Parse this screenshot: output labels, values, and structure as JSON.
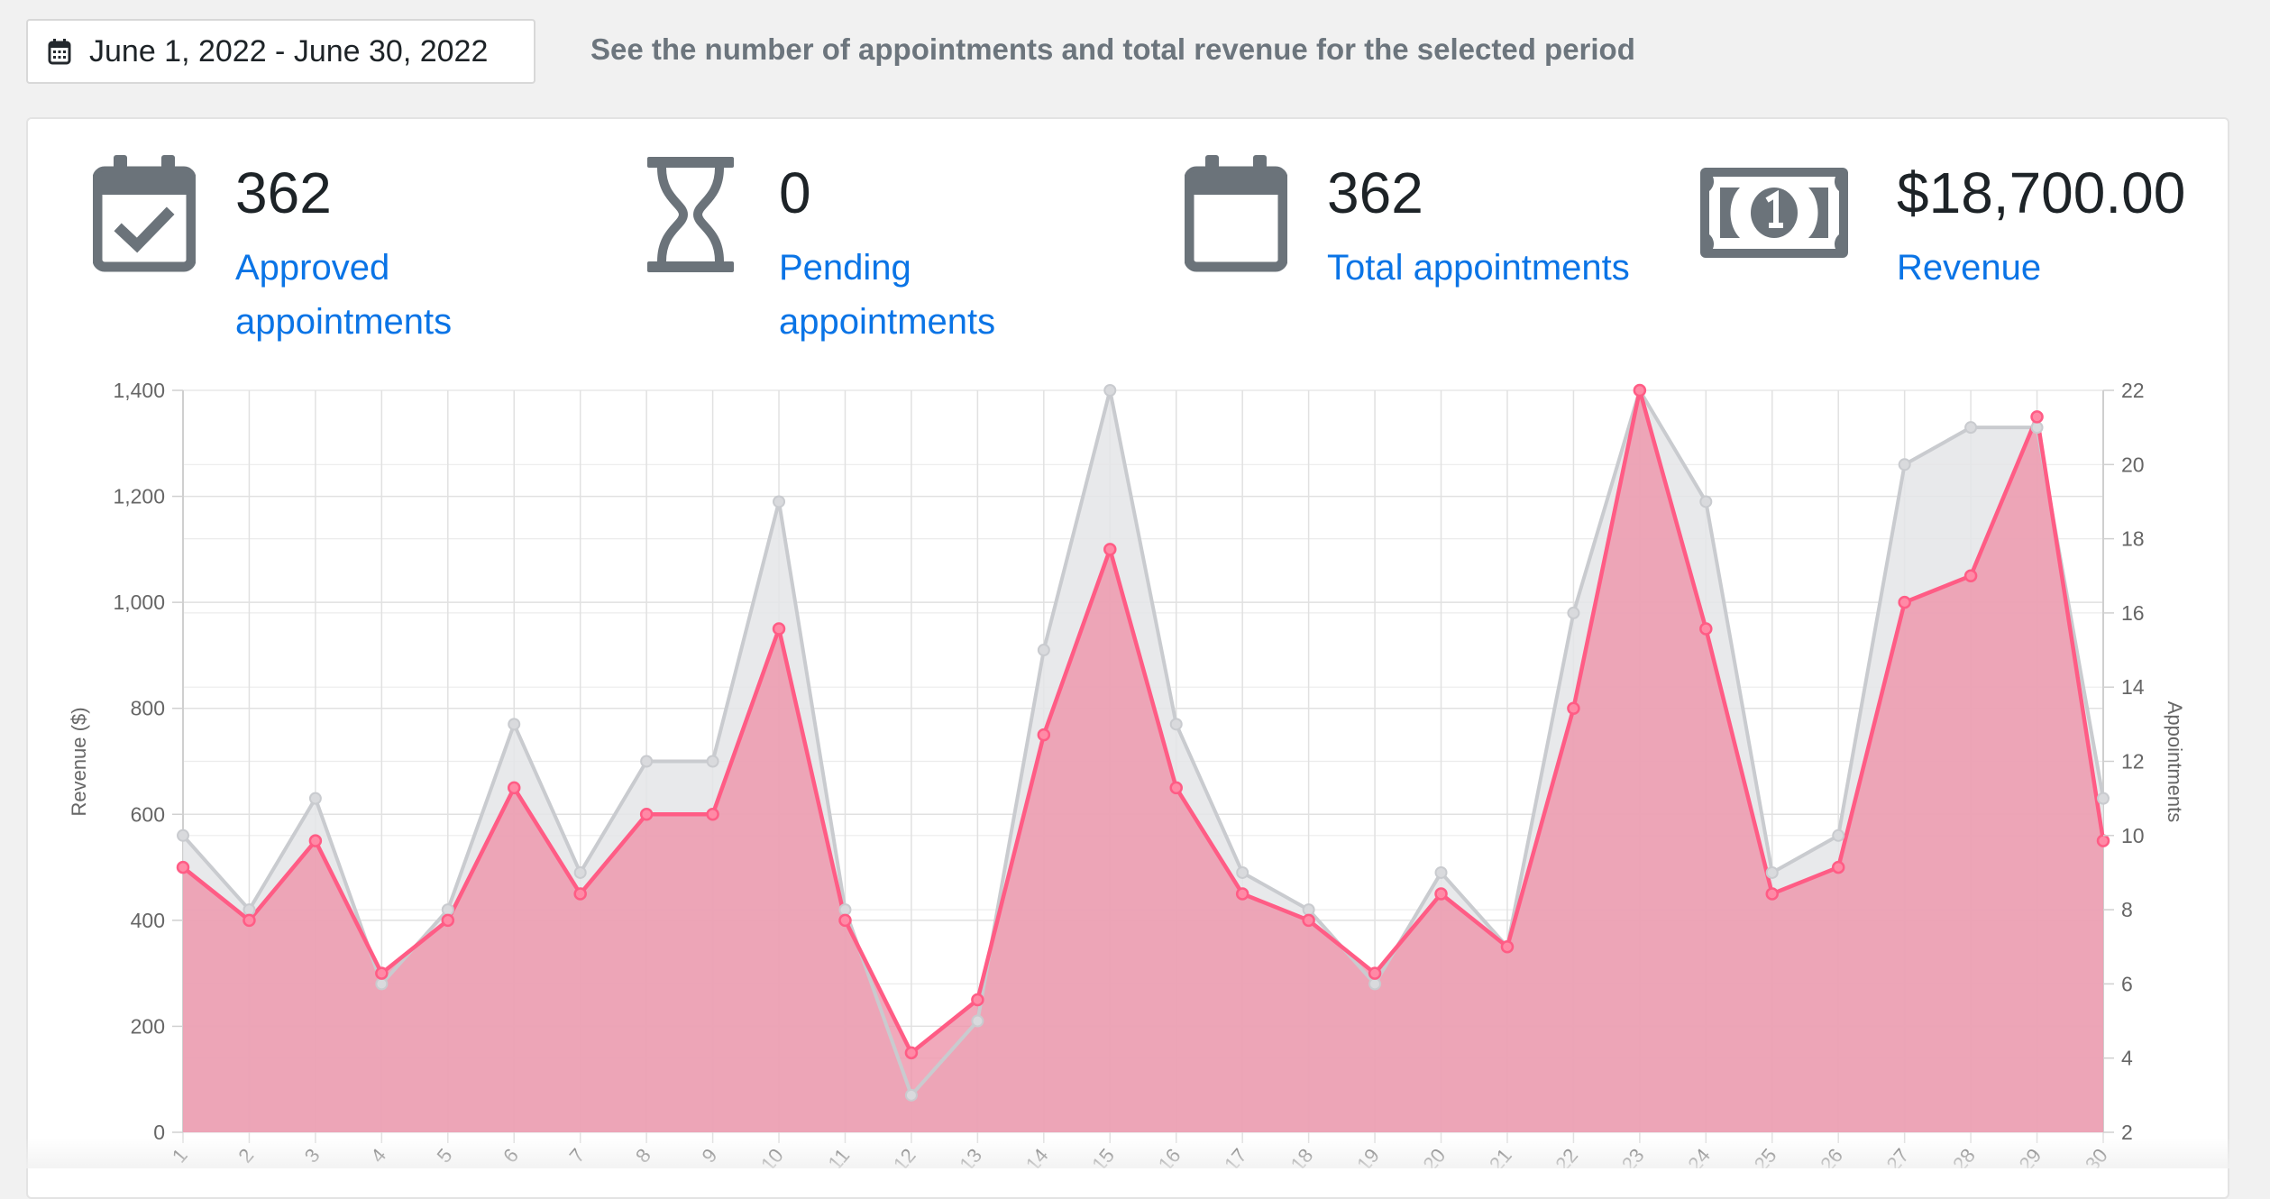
{
  "filter": {
    "date_range": "June 1, 2022 - June 30, 2022",
    "icon": "calendar-icon",
    "hint": "See the number of appointments and total revenue for the selected period"
  },
  "stats": {
    "approved": {
      "value": "362",
      "label": "Approved appointments",
      "icon": "calendar-check-icon"
    },
    "pending": {
      "value": "0",
      "label": "Pending appointments",
      "icon": "hourglass-icon"
    },
    "total": {
      "value": "362",
      "label": "Total appointments",
      "icon": "calendar-icon"
    },
    "revenue": {
      "value": "$18,700.00",
      "label": "Revenue",
      "icon": "money-bill-icon"
    }
  },
  "colors": {
    "link": "#0a74e6",
    "icon": "#6b737a",
    "revenue_line": "#ff5c85",
    "revenue_fill": "#ee93aa",
    "appointments_line": "#c9cbcf",
    "appointments_fill": "#e4e5e7"
  },
  "chart_data": {
    "type": "area",
    "title": "",
    "x": [
      "1",
      "2",
      "3",
      "4",
      "5",
      "6",
      "7",
      "8",
      "9",
      "10",
      "11",
      "12",
      "13",
      "14",
      "15",
      "16",
      "17",
      "18",
      "19",
      "20",
      "21",
      "22",
      "23",
      "24",
      "25",
      "26",
      "27",
      "28",
      "29",
      "30"
    ],
    "x_tick_labels_visible": [
      "1",
      "2",
      "3",
      "4",
      "5",
      "6",
      "7",
      "8",
      "9",
      "10",
      "11",
      "12",
      "13",
      "14",
      "15",
      "16",
      "17",
      "18",
      "19",
      "20",
      "21",
      "22",
      "23",
      "24",
      "25",
      "26",
      "27",
      "28",
      "29",
      "30"
    ],
    "grid": true,
    "series": [
      {
        "axis": "left",
        "color": "#ff5c85",
        "values": [
          500,
          400,
          550,
          300,
          400,
          650,
          450,
          600,
          600,
          950,
          400,
          150,
          250,
          750,
          1100,
          650,
          450,
          400,
          300,
          450,
          350,
          800,
          1400,
          950,
          450,
          500,
          1000,
          1050,
          1350,
          550
        ]
      },
      {
        "axis": "right",
        "color": "#c9cbcf",
        "values": [
          10,
          8,
          11,
          6,
          8,
          13,
          9,
          12,
          12,
          19,
          8,
          3,
          5,
          15,
          22,
          13,
          9,
          8,
          6,
          9,
          7,
          16,
          22,
          19,
          9,
          10,
          20,
          21,
          21,
          11
        ]
      }
    ],
    "y_left": {
      "label": "Revenue ($)",
      "ylim": [
        0,
        1400
      ],
      "ticks": [
        "0",
        "200",
        "400",
        "600",
        "800",
        "1,000",
        "1,200",
        "1,400"
      ]
    },
    "y_right": {
      "label": "Appointments",
      "ylim": [
        2,
        22
      ],
      "ticks": [
        "2",
        "4",
        "6",
        "8",
        "10",
        "12",
        "14",
        "16",
        "18",
        "20",
        "22"
      ]
    }
  }
}
